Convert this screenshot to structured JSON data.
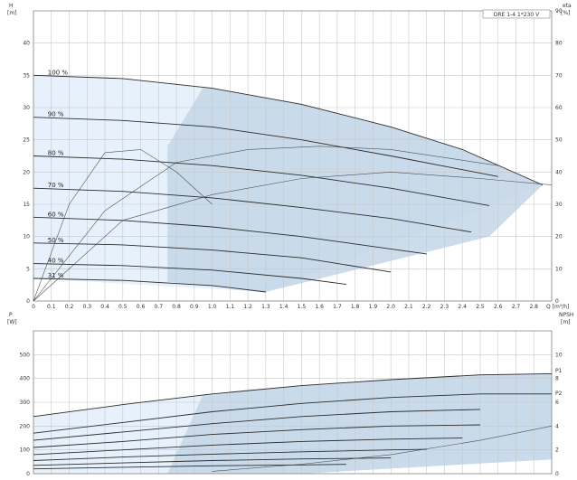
{
  "chart_data": [
    {
      "type": "line",
      "title": "DRE 1-4 1*230 V",
      "y_left_label": [
        "H",
        "[m]"
      ],
      "y_right_label": [
        "eta",
        "[%]"
      ],
      "x_label": "Q [m³/h]",
      "xlim": [
        0,
        2.9
      ],
      "ylim": [
        0,
        45
      ],
      "ylim_right": [
        0,
        90
      ],
      "x_ticks": [
        "0",
        "0.1",
        "0.2",
        "0.3",
        "0.4",
        "0.5",
        "0.6",
        "0.7",
        "0.8",
        "0.9",
        "1.0",
        "1.1",
        "1.2",
        "1.3",
        "1.4",
        "1.5",
        "1.6",
        "1.7",
        "1.8",
        "1.9",
        "2.0",
        "2.1",
        "2.2",
        "2.3",
        "2.4",
        "2.5",
        "2.6",
        "2.7",
        "2.8"
      ],
      "y_ticks": [
        0,
        5,
        10,
        15,
        20,
        25,
        30,
        35,
        40
      ],
      "y_ticks_right": [
        0,
        10,
        20,
        30,
        40,
        50,
        60,
        70,
        80,
        90
      ],
      "grid": true,
      "series": [
        {
          "name": "100 %",
          "x": [
            0,
            0.5,
            1.0,
            1.5,
            2.0,
            2.4,
            2.85
          ],
          "y": [
            35,
            34.5,
            33,
            30.5,
            27,
            23.5,
            18
          ]
        },
        {
          "name": "90 %",
          "x": [
            0,
            0.5,
            1.0,
            1.5,
            2.0,
            2.6
          ],
          "y": [
            28.5,
            28,
            27,
            25,
            22.5,
            19.3
          ]
        },
        {
          "name": "80 %",
          "x": [
            0,
            0.5,
            1.0,
            1.5,
            2.0,
            2.55
          ],
          "y": [
            22.5,
            22,
            21,
            19.5,
            17.5,
            14.8
          ]
        },
        {
          "name": "70 %",
          "x": [
            0,
            0.5,
            1.0,
            1.5,
            2.0,
            2.45
          ],
          "y": [
            17.5,
            17,
            16,
            14.5,
            12.8,
            10.7
          ]
        },
        {
          "name": "60 %",
          "x": [
            0,
            0.5,
            1.0,
            1.5,
            2.2
          ],
          "y": [
            13,
            12.5,
            11.5,
            10,
            7.3
          ]
        },
        {
          "name": "50 %",
          "x": [
            0,
            0.5,
            1.0,
            1.5,
            2.0
          ],
          "y": [
            9,
            8.7,
            7.9,
            6.7,
            4.5
          ]
        },
        {
          "name": "40 %",
          "x": [
            0,
            0.5,
            1.0,
            1.5,
            1.75
          ],
          "y": [
            5.8,
            5.5,
            4.8,
            3.5,
            2.6
          ]
        },
        {
          "name": "31 %",
          "x": [
            0,
            0.5,
            1.0,
            1.3
          ],
          "y": [
            3.5,
            3.2,
            2.4,
            1.4
          ]
        }
      ],
      "efficiency_curves": [
        {
          "x": [
            0,
            0.2,
            0.4,
            0.6,
            0.8,
            1.0
          ],
          "eta": [
            0,
            30,
            46,
            47,
            40,
            30
          ]
        },
        {
          "x": [
            0,
            0.4,
            0.8,
            1.2,
            1.6,
            2.0,
            2.6
          ],
          "eta": [
            0,
            28,
            43,
            47,
            48,
            47,
            42
          ]
        },
        {
          "x": [
            0,
            0.5,
            1.0,
            1.5,
            2.0,
            2.5,
            2.9
          ],
          "eta": [
            0,
            25,
            33,
            38,
            40,
            38,
            36
          ]
        }
      ]
    },
    {
      "type": "line",
      "y_left_label": [
        "P",
        "[W]"
      ],
      "y_right_label": [
        "NPSH",
        "[m]"
      ],
      "xlim": [
        0,
        2.9
      ],
      "ylim": [
        0,
        600
      ],
      "ylim_right": [
        0,
        12
      ],
      "y_ticks": [
        0,
        100,
        200,
        300,
        400,
        500
      ],
      "y_ticks_right": [
        0,
        2,
        4,
        6,
        8,
        10
      ],
      "grid": true,
      "annotations": [
        "P1",
        "P2"
      ],
      "series": [
        {
          "name": "P1",
          "x": [
            0,
            0.5,
            1.0,
            1.5,
            2.0,
            2.5,
            2.9
          ],
          "y": [
            240,
            290,
            335,
            370,
            395,
            415,
            420
          ]
        },
        {
          "name": "P2",
          "x": [
            0,
            0.5,
            1.0,
            1.5,
            2.0,
            2.5,
            2.9
          ],
          "y": [
            170,
            215,
            260,
            295,
            320,
            335,
            335
          ]
        },
        {
          "x": [
            0,
            0.5,
            1.0,
            1.5,
            2.0,
            2.5
          ],
          "y": [
            140,
            175,
            210,
            240,
            260,
            270
          ]
        },
        {
          "x": [
            0,
            0.5,
            1.0,
            1.5,
            2.0,
            2.5
          ],
          "y": [
            110,
            135,
            165,
            185,
            200,
            205
          ]
        },
        {
          "x": [
            0,
            0.5,
            1.0,
            1.5,
            2.0,
            2.4
          ],
          "y": [
            80,
            100,
            120,
            135,
            145,
            150
          ]
        },
        {
          "x": [
            0,
            0.5,
            1.0,
            1.5,
            2.0,
            2.2
          ],
          "y": [
            55,
            70,
            82,
            92,
            100,
            102
          ]
        },
        {
          "x": [
            0,
            0.5,
            1.0,
            1.5,
            2.0
          ],
          "y": [
            35,
            45,
            55,
            62,
            66
          ]
        },
        {
          "x": [
            0,
            0.5,
            1.0,
            1.5,
            1.75
          ],
          "y": [
            20,
            27,
            33,
            37,
            39
          ]
        }
      ],
      "npsh": {
        "x": [
          1.0,
          1.5,
          2.0,
          2.5,
          2.9
        ],
        "y": [
          0.2,
          0.8,
          1.6,
          2.8,
          4.0
        ]
      }
    }
  ]
}
